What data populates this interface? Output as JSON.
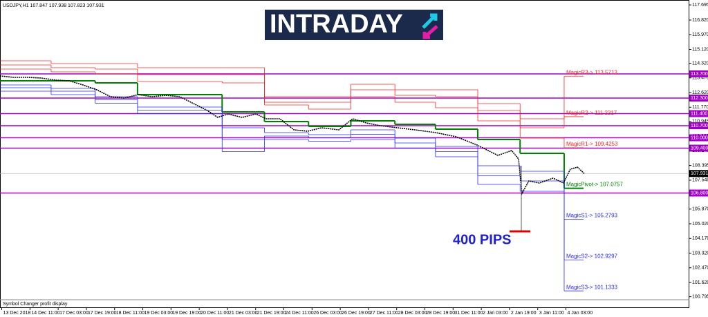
{
  "chart_data": {
    "type": "candlestick-intraday",
    "header": "USDJPY,H1  107.847 107.938 107.823 107.931",
    "logo": "INTRADAY",
    "annotation": "400 PIPS",
    "footer": "Symbol Changer profit display",
    "xlim": [
      0,
      391
    ],
    "ylim": [
      100.14,
      117.98
    ],
    "yticks": [
      117.695,
      {
        "value": 116.82,
        "label": "116.820"
      },
      {
        "value": 115.97,
        "label": "115.970"
      },
      {
        "value": 115.12,
        "label": "115.120"
      },
      {
        "value": 114.32,
        "label": "114.320"
      },
      {
        "value": 113.47,
        "label": "113.470"
      },
      {
        "value": 112.62,
        "label": "112.620"
      },
      {
        "value": 111.77,
        "label": "111.770"
      },
      110.945,
      110.095,
      109.245,
      108.395,
      107.545,
      106.695,
      {
        "value": 105.87,
        "label": "105.870"
      },
      {
        "value": 105.02,
        "label": "105.020"
      },
      {
        "value": 104.17,
        "label": "104.170"
      },
      {
        "value": 103.32,
        "label": "103.320"
      },
      {
        "value": 102.47,
        "label": "102.470"
      },
      {
        "value": 101.62,
        "label": "101.620"
      },
      100.795
    ],
    "xticks": [
      {
        "value": 1,
        "label": "13 Dec 2018"
      },
      {
        "value": 17,
        "label": "14 Dec 11:00"
      },
      {
        "value": 33,
        "label": "17 Dec 03:00"
      },
      {
        "value": 49,
        "label": "17 Dec 19:00"
      },
      {
        "value": 65,
        "label": "18 Dec 11:00"
      },
      {
        "value": 81,
        "label": "19 Dec 03:00"
      },
      {
        "value": 97,
        "label": "19 Dec 19:00"
      },
      {
        "value": 113,
        "label": "20 Dec 11:00"
      },
      {
        "value": 129,
        "label": "21 Dec 03:00"
      },
      {
        "value": 145,
        "label": "21 Dec 19:00"
      },
      {
        "value": 161,
        "label": "24 Dec 11:00"
      },
      {
        "value": 177,
        "label": "26 Dec 03:00"
      },
      {
        "value": 193,
        "label": "26 Dec 19:00"
      },
      {
        "value": 209,
        "label": "27 Dec 11:00"
      },
      {
        "value": 225,
        "label": "28 Dec 03:00"
      },
      {
        "value": 241,
        "label": "28 Dec 19:00"
      },
      {
        "value": 257,
        "label": "31 Dec 11:00"
      },
      {
        "value": 273,
        "label": "2 Jan 03:00"
      },
      {
        "value": 289,
        "label": "2 Jan 19:00"
      },
      {
        "value": 305,
        "label": "3 Jan 11:00"
      },
      {
        "value": 321,
        "label": "4 Jan 03:00"
      }
    ],
    "price": {
      "color": "#000000",
      "x": [
        0,
        7.8,
        15.7,
        23.5,
        31.4,
        39.2,
        47.1,
        54.9,
        62.7,
        70.6,
        78.4,
        86.3,
        94.1,
        102,
        109.8,
        117.6,
        123.5,
        129.4,
        137.3,
        145.1,
        151,
        158.8,
        166.7,
        174.5,
        182.4,
        192.2,
        200,
        207.8,
        215.7,
        225.5,
        235.3,
        247.1,
        258.8,
        270.6,
        282.4,
        290.2,
        294.1,
        296.1,
        300,
        305.9,
        313.7,
        319.6,
        323.5,
        327.5,
        331.4
      ],
      "values": [
        113.58,
        113.5,
        113.5,
        113.46,
        113.34,
        113.3,
        113.06,
        112.78,
        112.38,
        112.3,
        112.5,
        112.38,
        112.46,
        112.38,
        111.98,
        111.58,
        111.18,
        111.38,
        111.18,
        111.38,
        111.1,
        111.1,
        110.46,
        110.38,
        110.58,
        110.46,
        111.1,
        110.86,
        110.7,
        110.58,
        110.46,
        110.3,
        110.06,
        109.58,
        108.98,
        109.26,
        108.78,
        106.78,
        107.5,
        107.38,
        107.66,
        107.38,
        108.18,
        108.3,
        107.93
      ]
    },
    "day_edges": [
      0,
      29,
      54,
      78,
      126,
      150,
      175,
      199,
      224,
      247,
      271,
      295,
      320,
      331
    ],
    "series": [
      {
        "label": "MagicR3-> 113.5713",
        "color": "#ff2020",
        "values": [
          114.46,
          114.3,
          114.3,
          114.06,
          114.06,
          112.38,
          112.38,
          113.1,
          112.78,
          112.78,
          111.98,
          111.1,
          113.5713
        ]
      },
      {
        "label": "MagicR2-> 111.2217",
        "color": "#ff2020",
        "values": [
          114.22,
          114.06,
          113.98,
          113.66,
          113.66,
          112.06,
          112.06,
          112.78,
          112.46,
          112.38,
          111.58,
          110.58,
          111.2217
        ]
      },
      {
        "label": "MagicR1-> 109.4253",
        "color": "#ff2020",
        "values": [
          113.98,
          113.82,
          113.7,
          113.26,
          113.18,
          111.9,
          111.66,
          112.38,
          112.06,
          111.74,
          110.98,
          109.98,
          109.4253
        ]
      },
      {
        "label": "MagicPivot-> 107.0757",
        "color": "#008000",
        "values": [
          113.3,
          113.3,
          113.18,
          112.5,
          111.5,
          110.94,
          110.66,
          110.98,
          110.78,
          110.5,
          109.9,
          109.1,
          107.0757
        ]
      },
      {
        "label": "MagicS1-> 105.2793",
        "color": "#2828ff",
        "values": [
          113.06,
          112.86,
          112.38,
          111.78,
          110.58,
          110.3,
          110.18,
          110.46,
          109.98,
          109.5,
          108.38,
          108.06,
          105.2793
        ]
      },
      {
        "label": "MagicS2-> 102.9297",
        "color": "#2828ff",
        "values": [
          112.9,
          112.7,
          112.2,
          111.6,
          109.9,
          110.1,
          110.0,
          110.2,
          109.7,
          109.2,
          107.8,
          107.5,
          102.9297
        ]
      },
      {
        "label": "MagicS3-> 101.1333",
        "color": "#2828ff",
        "values": [
          112.7,
          112.5,
          112.0,
          111.4,
          109.2,
          109.9,
          109.8,
          109.9,
          109.4,
          108.9,
          107.3,
          106.9,
          101.1333
        ]
      }
    ],
    "levels_color": "#a000c8",
    "levels": [
      {
        "value": 113.7,
        "label": "113.700"
      },
      {
        "value": 112.3,
        "label": "112.300"
      },
      {
        "value": 111.4,
        "label": "111.400"
      },
      {
        "value": 110.7,
        "label": "110.700"
      },
      {
        "value": 110.0,
        "label": "110.000"
      },
      {
        "value": 109.4,
        "label": "109.400"
      },
      {
        "value": 106.8,
        "label": "106.800"
      }
    ],
    "current": 107.931
  }
}
